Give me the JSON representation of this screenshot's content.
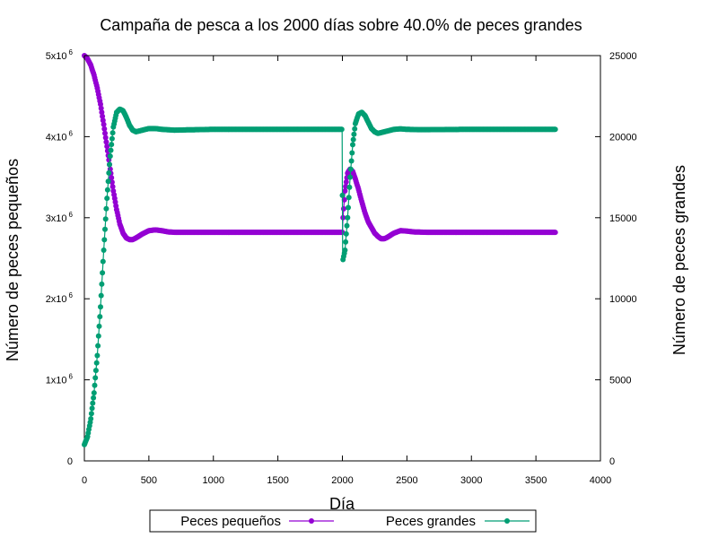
{
  "chart_data": {
    "type": "line",
    "title": "Campaña de pesca a los 2000 días sobre 40.0% de peces grandes",
    "xlabel": "Día",
    "ylabel_left": "Número de peces pequeños",
    "ylabel_right": "Número de peces grandes",
    "xlim": [
      0,
      4000
    ],
    "ylim_left": [
      0,
      5000000
    ],
    "ylim_right": [
      0,
      25000
    ],
    "x_ticks": [
      0,
      500,
      1000,
      1500,
      2000,
      2500,
      3000,
      3500,
      4000
    ],
    "x_tick_labels": [
      "0",
      "500",
      "1000",
      "1500",
      "2000",
      "2500",
      "3000",
      "3500",
      "4000"
    ],
    "y_left_ticks": [
      0,
      1000000,
      2000000,
      3000000,
      4000000,
      5000000
    ],
    "y_left_tick_labels": [
      {
        "base": "0",
        "exp": ""
      },
      {
        "base": "1x10",
        "exp": "6"
      },
      {
        "base": "2x10",
        "exp": "6"
      },
      {
        "base": "3x10",
        "exp": "6"
      },
      {
        "base": "4x10",
        "exp": "6"
      },
      {
        "base": "5x10",
        "exp": "6"
      }
    ],
    "y_right_ticks": [
      0,
      5000,
      10000,
      15000,
      20000,
      25000
    ],
    "y_right_tick_labels": [
      "0",
      "5000",
      "10000",
      "15000",
      "20000",
      "25000"
    ],
    "grid": false,
    "legend_position": "bottom-center",
    "series": [
      {
        "name": "Peces pequeños",
        "axis": "left",
        "color": "#9400d3",
        "points": [
          [
            0,
            5000000
          ],
          [
            25,
            4960000
          ],
          [
            50,
            4880000
          ],
          [
            75,
            4760000
          ],
          [
            100,
            4600000
          ],
          [
            125,
            4400000
          ],
          [
            150,
            4150000
          ],
          [
            175,
            3880000
          ],
          [
            200,
            3600000
          ],
          [
            225,
            3330000
          ],
          [
            250,
            3100000
          ],
          [
            275,
            2920000
          ],
          [
            300,
            2810000
          ],
          [
            325,
            2750000
          ],
          [
            350,
            2730000
          ],
          [
            375,
            2730000
          ],
          [
            400,
            2750000
          ],
          [
            450,
            2800000
          ],
          [
            500,
            2840000
          ],
          [
            550,
            2850000
          ],
          [
            600,
            2840000
          ],
          [
            650,
            2825000
          ],
          [
            700,
            2820000
          ],
          [
            800,
            2820000
          ],
          [
            1000,
            2820000
          ],
          [
            1500,
            2820000
          ],
          [
            1990,
            2820000
          ],
          [
            2000,
            2820000
          ],
          [
            2005,
            3000000
          ],
          [
            2020,
            3330000
          ],
          [
            2040,
            3550000
          ],
          [
            2060,
            3600000
          ],
          [
            2080,
            3570000
          ],
          [
            2100,
            3480000
          ],
          [
            2125,
            3350000
          ],
          [
            2150,
            3200000
          ],
          [
            2175,
            3060000
          ],
          [
            2200,
            2950000
          ],
          [
            2225,
            2880000
          ],
          [
            2250,
            2810000
          ],
          [
            2275,
            2770000
          ],
          [
            2300,
            2740000
          ],
          [
            2325,
            2740000
          ],
          [
            2350,
            2760000
          ],
          [
            2400,
            2810000
          ],
          [
            2450,
            2840000
          ],
          [
            2500,
            2835000
          ],
          [
            2550,
            2825000
          ],
          [
            2650,
            2820000
          ],
          [
            3000,
            2820000
          ],
          [
            3500,
            2820000
          ],
          [
            3650,
            2820000
          ]
        ]
      },
      {
        "name": "Peces grandes",
        "axis": "right",
        "color": "#009e73",
        "points": [
          [
            0,
            1000
          ],
          [
            25,
            1500
          ],
          [
            50,
            2600
          ],
          [
            75,
            4200
          ],
          [
            100,
            6500
          ],
          [
            125,
            9500
          ],
          [
            150,
            13000
          ],
          [
            175,
            16200
          ],
          [
            200,
            18800
          ],
          [
            225,
            20600
          ],
          [
            250,
            21500
          ],
          [
            275,
            21700
          ],
          [
            300,
            21600
          ],
          [
            325,
            21200
          ],
          [
            350,
            20700
          ],
          [
            375,
            20400
          ],
          [
            400,
            20300
          ],
          [
            450,
            20400
          ],
          [
            500,
            20500
          ],
          [
            550,
            20500
          ],
          [
            600,
            20450
          ],
          [
            700,
            20400
          ],
          [
            800,
            20420
          ],
          [
            1000,
            20450
          ],
          [
            1500,
            20450
          ],
          [
            1990,
            20450
          ],
          [
            1998,
            20450
          ],
          [
            2002,
            12300
          ],
          [
            2020,
            13000
          ],
          [
            2040,
            15000
          ],
          [
            2060,
            17500
          ],
          [
            2080,
            19500
          ],
          [
            2100,
            20800
          ],
          [
            2125,
            21400
          ],
          [
            2150,
            21500
          ],
          [
            2175,
            21300
          ],
          [
            2200,
            20900
          ],
          [
            2225,
            20500
          ],
          [
            2250,
            20300
          ],
          [
            2275,
            20200
          ],
          [
            2300,
            20250
          ],
          [
            2350,
            20350
          ],
          [
            2400,
            20450
          ],
          [
            2450,
            20480
          ],
          [
            2500,
            20450
          ],
          [
            2600,
            20430
          ],
          [
            3000,
            20450
          ],
          [
            3500,
            20450
          ],
          [
            3650,
            20450
          ]
        ]
      }
    ]
  }
}
